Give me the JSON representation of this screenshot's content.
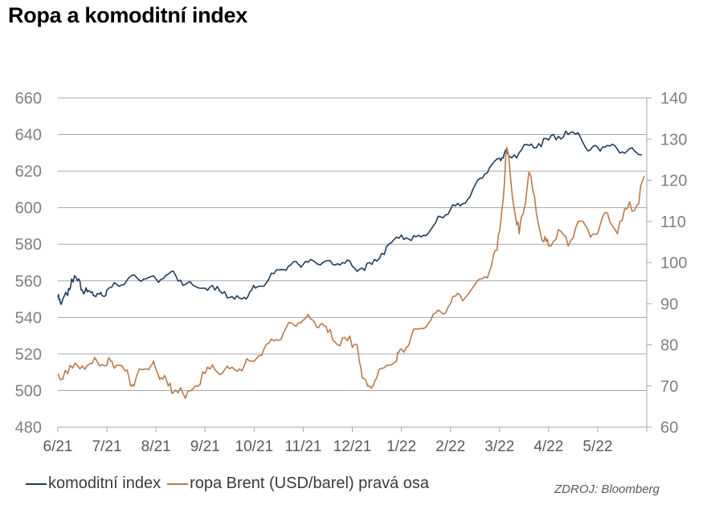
{
  "title": "Ropa a komoditní index",
  "source": "ZDROJ: Bloomberg",
  "legend": [
    {
      "label": "komoditní index",
      "color": "#1f3b5c"
    },
    {
      "label": "ropa Brent (USD/barel) pravá osa",
      "color": "#b87a4b"
    }
  ],
  "chart_data": {
    "type": "line",
    "title": "Ropa a komoditní index",
    "x_labels": [
      "6/21",
      "7/21",
      "8/21",
      "9/21",
      "10/21",
      "11/21",
      "12/21",
      "1/22",
      "2/22",
      "3/22",
      "4/22",
      "5/22"
    ],
    "y_left": {
      "ticks": [
        480,
        500,
        520,
        540,
        560,
        580,
        600,
        620,
        640,
        660
      ],
      "lim": [
        480,
        660
      ]
    },
    "y_right": {
      "ticks": [
        60,
        70,
        80,
        90,
        100,
        110,
        120,
        130,
        140
      ],
      "lim": [
        60,
        140
      ]
    },
    "grid": true,
    "legend_position": "bottom-left",
    "series": [
      {
        "name": "komoditní index",
        "axis": "left",
        "color": "#1f3b5c",
        "x": [
          0.0,
          0.05,
          0.12,
          0.2,
          0.28,
          0.4,
          0.5,
          0.6,
          0.7,
          0.8,
          0.9,
          1.0,
          1.2,
          1.4,
          1.6,
          1.8,
          2.0,
          2.2,
          2.4,
          2.6,
          2.8,
          3.0,
          3.2,
          3.4,
          3.6,
          3.8,
          3.95,
          4.1,
          4.3,
          4.5,
          4.7,
          4.9,
          5.0,
          5.2,
          5.4,
          5.6,
          5.8,
          6.0,
          6.2,
          6.4,
          6.6,
          6.8,
          7.0,
          7.2,
          7.4,
          7.6,
          7.8,
          8.0,
          8.2,
          8.4,
          8.6,
          8.8,
          9.0,
          9.1,
          9.2,
          9.4,
          9.6,
          9.8,
          10.0,
          10.2,
          10.4,
          10.6,
          10.8,
          11.0,
          11.2,
          11.4,
          11.6,
          11.8,
          11.9
        ],
        "values": [
          551,
          548,
          551,
          552,
          561,
          560,
          555,
          554,
          554,
          553,
          552,
          555,
          558,
          560,
          562,
          561,
          561,
          563,
          563,
          558,
          557,
          556,
          555,
          554,
          550,
          551,
          555,
          557,
          561,
          566,
          568,
          569,
          569,
          571,
          570,
          569,
          570,
          568,
          567,
          569,
          575,
          581,
          585,
          582,
          584,
          588,
          595,
          599,
          601,
          606,
          616,
          622,
          627,
          630,
          628,
          630,
          634,
          635,
          637,
          639,
          640,
          641,
          631,
          633,
          634,
          632,
          631,
          630,
          629
        ]
      },
      {
        "name": "ropa Brent (USD/barel) pravá osa",
        "axis": "right",
        "color": "#b87a4b",
        "x": [
          0.0,
          0.2,
          0.4,
          0.6,
          0.8,
          1.0,
          1.1,
          1.3,
          1.45,
          1.55,
          1.7,
          1.9,
          2.0,
          2.1,
          2.25,
          2.4,
          2.6,
          2.8,
          3.0,
          3.2,
          3.4,
          3.6,
          3.8,
          4.0,
          4.2,
          4.4,
          4.6,
          4.8,
          5.0,
          5.2,
          5.35,
          5.5,
          5.7,
          5.9,
          6.1,
          6.2,
          6.35,
          6.5,
          6.7,
          6.9,
          7.0,
          7.2,
          7.4,
          7.6,
          7.8,
          8.0,
          8.2,
          8.4,
          8.6,
          8.8,
          8.95,
          9.05,
          9.15,
          9.3,
          9.4,
          9.5,
          9.6,
          9.75,
          9.9,
          10.0,
          10.2,
          10.4,
          10.6,
          10.8,
          11.0,
          11.2,
          11.4,
          11.6,
          11.8,
          11.95
        ],
        "values": [
          73,
          73,
          75,
          75,
          76,
          75,
          76,
          75,
          72,
          70,
          74,
          75,
          74,
          72,
          70,
          69,
          67,
          70,
          73,
          74,
          74,
          74,
          75,
          76,
          79,
          81,
          83,
          85,
          86,
          86,
          85,
          83,
          80,
          81,
          80,
          72,
          70,
          72,
          75,
          76,
          79,
          82,
          84,
          86,
          88,
          90,
          92,
          93,
          96,
          98,
          103,
          113,
          128,
          113,
          107,
          113,
          122,
          112,
          105,
          104,
          108,
          104,
          110,
          108,
          107,
          112,
          107,
          113,
          114,
          121
        ]
      }
    ]
  }
}
